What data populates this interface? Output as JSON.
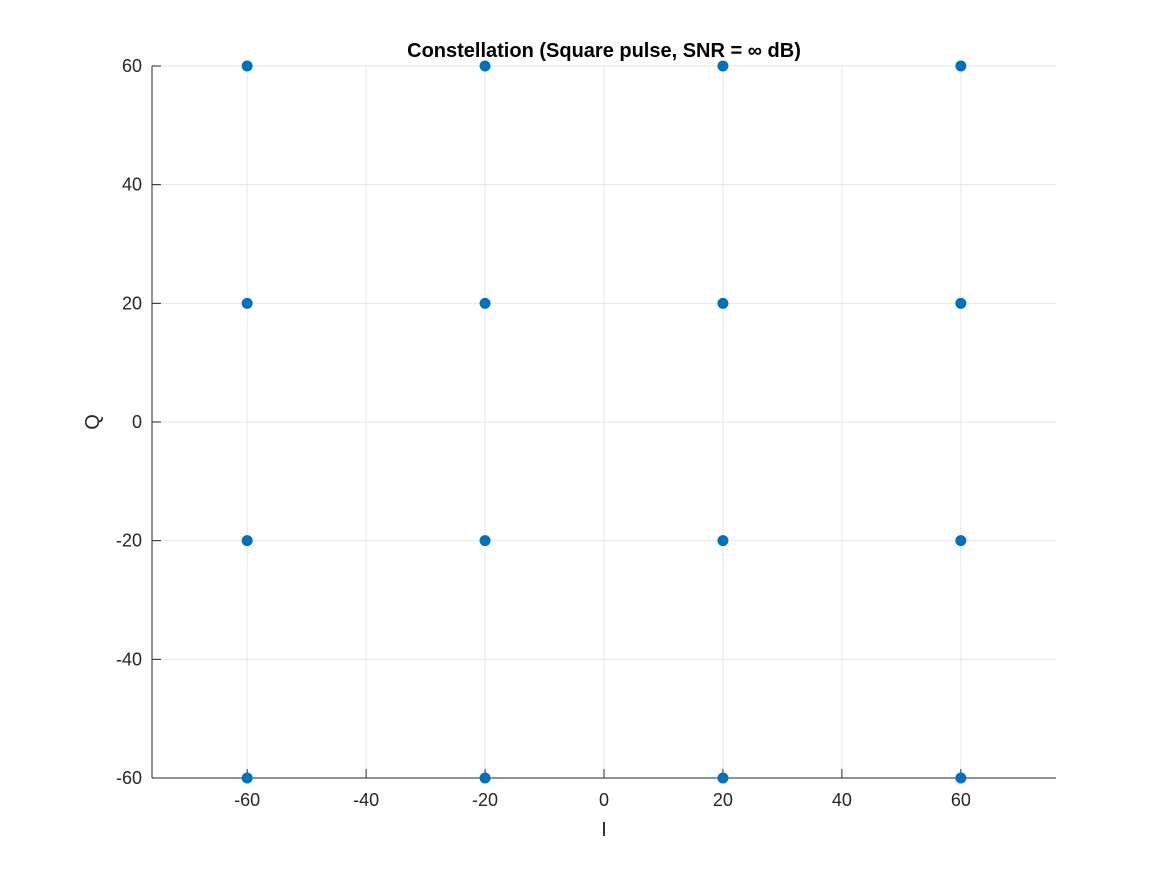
{
  "chart_data": {
    "type": "scatter",
    "title": "Constellation (Square pulse, SNR = ∞ dB)",
    "xlabel": "I",
    "ylabel": "Q",
    "xlim": [
      -76,
      76
    ],
    "ylim": [
      -60,
      60
    ],
    "x_ticks": [
      -60,
      -40,
      -20,
      0,
      20,
      40,
      60
    ],
    "y_ticks": [
      -60,
      -40,
      -20,
      0,
      20,
      40,
      60
    ],
    "x_tick_labels": [
      "-60",
      "-40",
      "-20",
      "0",
      "20",
      "40",
      "60"
    ],
    "y_tick_labels": [
      "-60",
      "-40",
      "-20",
      "0",
      "20",
      "40",
      "60"
    ],
    "grid": true,
    "legend": "none",
    "marker_color": "#0072BD",
    "grid_color": "#e5e5e5",
    "axis_color": "#262626",
    "series": [
      {
        "points": [
          {
            "x": -60,
            "y": 60
          },
          {
            "x": -20,
            "y": 60
          },
          {
            "x": 20,
            "y": 60
          },
          {
            "x": 60,
            "y": 60
          },
          {
            "x": -60,
            "y": 20
          },
          {
            "x": -20,
            "y": 20
          },
          {
            "x": 20,
            "y": 20
          },
          {
            "x": 60,
            "y": 20
          },
          {
            "x": -60,
            "y": -20
          },
          {
            "x": -20,
            "y": -20
          },
          {
            "x": 20,
            "y": -20
          },
          {
            "x": 60,
            "y": -20
          },
          {
            "x": -60,
            "y": -60
          },
          {
            "x": -20,
            "y": -60
          },
          {
            "x": 20,
            "y": -60
          },
          {
            "x": 60,
            "y": -60
          }
        ]
      }
    ]
  }
}
